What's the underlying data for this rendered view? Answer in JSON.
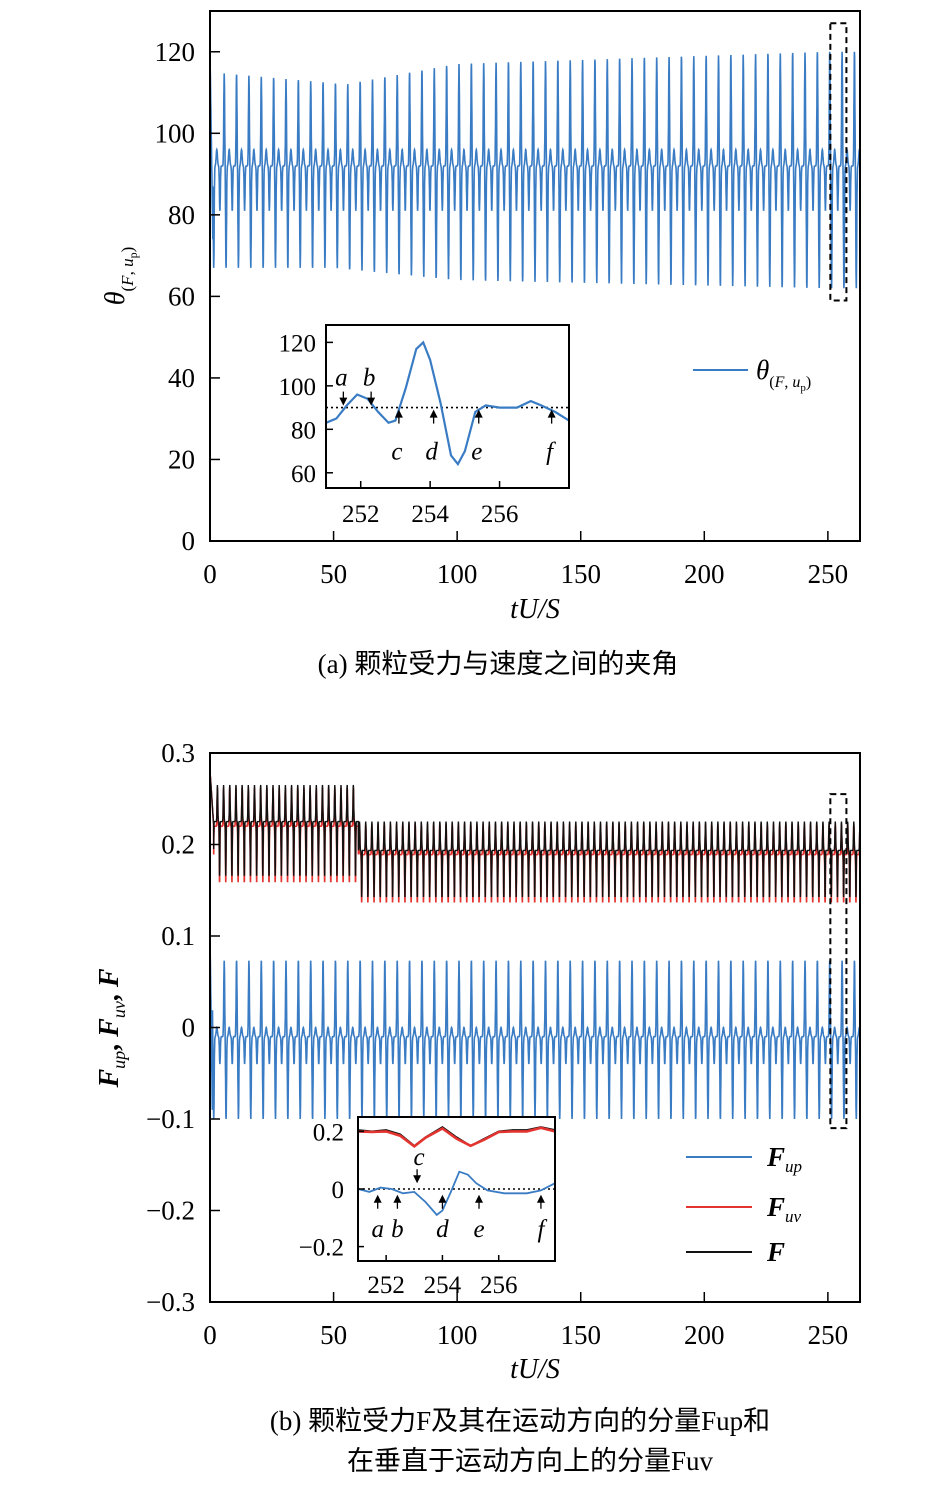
{
  "colors": {
    "blue": "#3a7cc4",
    "red": "#e3342f",
    "black": "#111111"
  },
  "captions": {
    "a": "(a) 颗粒受力与速度之间的夹角",
    "b_line1": "(b) 颗粒受力F及其在运动方向的分量Fup和",
    "b_line2": "在垂直于运动方向上的分量Fuv"
  },
  "chart_data": [
    {
      "type": "line",
      "xlabel": "tU/S",
      "ylabel": "θ(F, up)",
      "xlim": [
        0,
        263
      ],
      "ylim": [
        0,
        130
      ],
      "xticks": [
        0,
        50,
        100,
        150,
        200,
        250
      ],
      "yticks": [
        0,
        20,
        40,
        60,
        80,
        100,
        120
      ],
      "legend": {
        "placement": "inset-right",
        "entries": [
          "θ(F, up)"
        ]
      },
      "series": [
        {
          "name": "θ(F, up)",
          "color": "blue",
          "signal": {
            "t_start": 0,
            "t_end": 263,
            "period": 5.0,
            "peak_max": [
              [
                0,
                115
              ],
              [
                55,
                112
              ],
              [
                100,
                117
              ],
              [
                250,
                120
              ]
            ],
            "trough_min": [
              [
                0,
                67
              ],
              [
                50,
                67
              ],
              [
                100,
                64
              ],
              [
                250,
                62
              ]
            ],
            "baseline": 92,
            "sub_peak": 96,
            "sub_trough": 81
          }
        }
      ],
      "zoom_region": {
        "x": [
          251,
          257.5
        ],
        "y": [
          59,
          127
        ]
      },
      "inset": {
        "type": "line",
        "xlim": [
          251,
          258
        ],
        "ylim": [
          53,
          128
        ],
        "xticks": [
          252,
          254,
          256
        ],
        "yticks": [
          60,
          80,
          100,
          120
        ],
        "reference_line": 90,
        "points": [
          [
            251,
            83
          ],
          [
            251.3,
            85
          ],
          [
            251.6,
            91
          ],
          [
            251.9,
            96
          ],
          [
            252.2,
            94
          ],
          [
            252.5,
            88
          ],
          [
            252.8,
            83
          ],
          [
            253.0,
            84
          ],
          [
            253.3,
            99
          ],
          [
            253.6,
            117
          ],
          [
            253.8,
            120
          ],
          [
            254.0,
            112
          ],
          [
            254.3,
            92
          ],
          [
            254.6,
            68
          ],
          [
            254.8,
            64
          ],
          [
            255.0,
            70
          ],
          [
            255.3,
            88
          ],
          [
            255.6,
            91
          ],
          [
            256.0,
            90
          ],
          [
            256.5,
            90
          ],
          [
            256.9,
            93
          ],
          [
            257.2,
            91
          ],
          [
            257.6,
            88
          ],
          [
            258.0,
            84
          ]
        ],
        "labels": [
          {
            "text": "a",
            "x": 251.5,
            "y": 90
          },
          {
            "text": "b",
            "x": 252.3,
            "y": 90
          },
          {
            "text": "c",
            "x": 253.1,
            "y": 90
          },
          {
            "text": "d",
            "x": 254.1,
            "y": 90
          },
          {
            "text": "e",
            "x": 255.4,
            "y": 90
          },
          {
            "text": "f",
            "x": 257.5,
            "y": 90
          }
        ]
      }
    },
    {
      "type": "line",
      "xlabel": "tU/S",
      "ylabel": "Fup, Fuv, F",
      "xlim": [
        0,
        263
      ],
      "ylim": [
        -0.3,
        0.3
      ],
      "xticks": [
        0,
        50,
        100,
        150,
        200,
        250
      ],
      "yticks": [
        -0.3,
        -0.2,
        -0.1,
        0,
        0.1,
        0.2,
        0.3
      ],
      "ytick_labels": [
        "−0.3",
        "−0.2",
        "−0.1",
        "0",
        "0.1",
        "0.2",
        "0.3"
      ],
      "legend": {
        "placement": "bottom-right",
        "entries": [
          "Fup",
          "Fuv",
          "F"
        ]
      },
      "series": [
        {
          "name": "Fup",
          "color": "blue",
          "signal": {
            "period": 5.0,
            "peak": 0.083,
            "trough": -0.09,
            "mid_high": 0.01,
            "mid_low": -0.03
          }
        },
        {
          "name": "Fuv",
          "color": "red",
          "signal": {
            "period": 2.5,
            "segments": [
              {
                "t": [
                  0,
                  60
                ],
                "high": 0.262,
                "low": 0.158
              },
              {
                "t": [
                  60,
                  263
                ],
                "high": 0.222,
                "low": 0.136
              }
            ]
          }
        },
        {
          "name": "F",
          "color": "black",
          "signal": {
            "period": 2.5,
            "segments": [
              {
                "t": [
                  0,
                  60
                ],
                "high": 0.265,
                "low": 0.165
              },
              {
                "t": [
                  60,
                  263
                ],
                "high": 0.225,
                "low": 0.142
              }
            ]
          }
        }
      ],
      "zoom_region": {
        "x": [
          251,
          257.5
        ],
        "y": [
          -0.11,
          0.255
        ]
      },
      "inset": {
        "xlim": [
          251,
          258
        ],
        "ylim": [
          -0.25,
          0.25
        ],
        "xticks": [
          252,
          254,
          256
        ],
        "yticks": [
          -0.2,
          0,
          0.2
        ],
        "ytick_labels": [
          "−0.2",
          "0",
          "0.2"
        ],
        "reference_line": 0,
        "series": [
          {
            "name": "F",
            "color": "black",
            "points": [
              [
                251,
                0.205
              ],
              [
                251.5,
                0.2
              ],
              [
                252,
                0.205
              ],
              [
                252.5,
                0.19
              ],
              [
                253,
                0.15
              ],
              [
                253.4,
                0.18
              ],
              [
                254,
                0.215
              ],
              [
                254.5,
                0.18
              ],
              [
                255,
                0.15
              ],
              [
                255.5,
                0.175
              ],
              [
                256,
                0.2
              ],
              [
                256.5,
                0.205
              ],
              [
                257,
                0.205
              ],
              [
                257.5,
                0.215
              ],
              [
                258,
                0.205
              ]
            ]
          },
          {
            "name": "Fuv",
            "color": "red",
            "points": [
              [
                251,
                0.2
              ],
              [
                251.5,
                0.198
              ],
              [
                252,
                0.2
              ],
              [
                252.5,
                0.185
              ],
              [
                253,
                0.148
              ],
              [
                253.4,
                0.178
              ],
              [
                254,
                0.21
              ],
              [
                254.5,
                0.175
              ],
              [
                255,
                0.15
              ],
              [
                255.5,
                0.172
              ],
              [
                256,
                0.198
              ],
              [
                256.5,
                0.2
              ],
              [
                257,
                0.2
              ],
              [
                257.5,
                0.212
              ],
              [
                258,
                0.2
              ]
            ]
          },
          {
            "name": "Fup",
            "color": "blue",
            "points": [
              [
                251,
                0.0
              ],
              [
                251.4,
                -0.01
              ],
              [
                251.8,
                0.005
              ],
              [
                252.2,
                0.0
              ],
              [
                252.6,
                -0.015
              ],
              [
                253.0,
                -0.01
              ],
              [
                253.4,
                -0.045
              ],
              [
                253.8,
                -0.09
              ],
              [
                254.0,
                -0.075
              ],
              [
                254.3,
                -0.01
              ],
              [
                254.6,
                0.06
              ],
              [
                254.9,
                0.05
              ],
              [
                255.2,
                0.02
              ],
              [
                255.6,
                -0.005
              ],
              [
                256.2,
                -0.015
              ],
              [
                257.0,
                -0.015
              ],
              [
                257.5,
                -0.005
              ],
              [
                258,
                0.02
              ]
            ]
          }
        ],
        "labels": [
          {
            "text": "a",
            "x": 251.7,
            "y": 0
          },
          {
            "text": "b",
            "x": 252.4,
            "y": 0
          },
          {
            "text": "c",
            "x": 253.1,
            "y": 0
          },
          {
            "text": "d",
            "x": 254.0,
            "y": 0
          },
          {
            "text": "e",
            "x": 255.3,
            "y": 0
          },
          {
            "text": "f",
            "x": 257.5,
            "y": 0
          }
        ]
      }
    }
  ]
}
